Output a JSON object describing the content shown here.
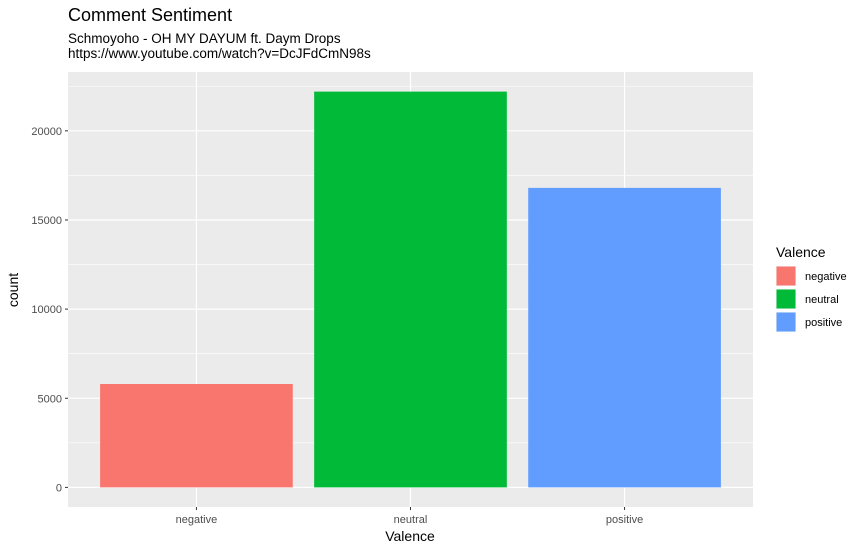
{
  "chart_data": {
    "type": "bar",
    "title": "Comment Sentiment",
    "subtitle": [
      "Schmoyoho - OH MY DAYUM ft. Daym Drops",
      "https://www.youtube.com/watch?v=DcJFdCmN98s"
    ],
    "xlabel": "Valence",
    "ylabel": "count",
    "categories": [
      "negative",
      "neutral",
      "positive"
    ],
    "values": [
      5800,
      22200,
      16800
    ],
    "colors": [
      "#F8766D",
      "#00BA38",
      "#619CFF"
    ],
    "ylim": [
      -1100,
      23300
    ],
    "y_ticks": [
      0,
      5000,
      10000,
      15000,
      20000
    ],
    "y_tick_labels": [
      "0",
      "5000",
      "10000",
      "15000",
      "20000"
    ],
    "grid": true,
    "panel_background": "#EBEBEB",
    "grid_color": "#FFFFFF",
    "legend": {
      "title": "Valence",
      "position": "right",
      "entries": [
        "negative",
        "neutral",
        "positive"
      ]
    }
  }
}
